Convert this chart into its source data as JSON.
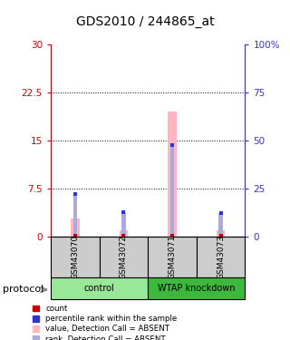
{
  "title": "GDS2010 / 244865_at",
  "samples": [
    "GSM43070",
    "GSM43072",
    "GSM43071",
    "GSM43073"
  ],
  "group_spans": [
    {
      "name": "control",
      "start": 0,
      "end": 2,
      "color": "#98E898"
    },
    {
      "name": "WTAP knockdown",
      "start": 2,
      "end": 4,
      "color": "#3CB83C"
    }
  ],
  "bar_color_absent": "#FFB6C1",
  "rank_color_absent": "#AAAADD",
  "count_color": "#CC0000",
  "rank_color": "#3333CC",
  "values_absent": [
    2.8,
    1.0,
    19.5,
    0.9
  ],
  "ranks_absent_pct": [
    22.0,
    12.5,
    47.5,
    12.0
  ],
  "count_yval": [
    0.15,
    0.15,
    0.15,
    0.15
  ],
  "ylim_left": [
    0,
    30
  ],
  "ylim_right": [
    0,
    100
  ],
  "yticks_left": [
    0,
    7.5,
    15,
    22.5,
    30
  ],
  "ytick_labels_left": [
    "0",
    "7.5",
    "15",
    "22.5",
    "30"
  ],
  "yticks_right": [
    0,
    25,
    50,
    75,
    100
  ],
  "ytick_labels_right": [
    "0",
    "25",
    "50",
    "75",
    "100%"
  ],
  "left_axis_color": "#CC0000",
  "right_axis_color": "#3333CC",
  "bar_width": 0.18,
  "legend_items": [
    {
      "color": "#CC0000",
      "label": "count"
    },
    {
      "color": "#3333CC",
      "label": "percentile rank within the sample"
    },
    {
      "color": "#FFB6C1",
      "label": "value, Detection Call = ABSENT"
    },
    {
      "color": "#AAAADD",
      "label": "rank, Detection Call = ABSENT"
    }
  ]
}
